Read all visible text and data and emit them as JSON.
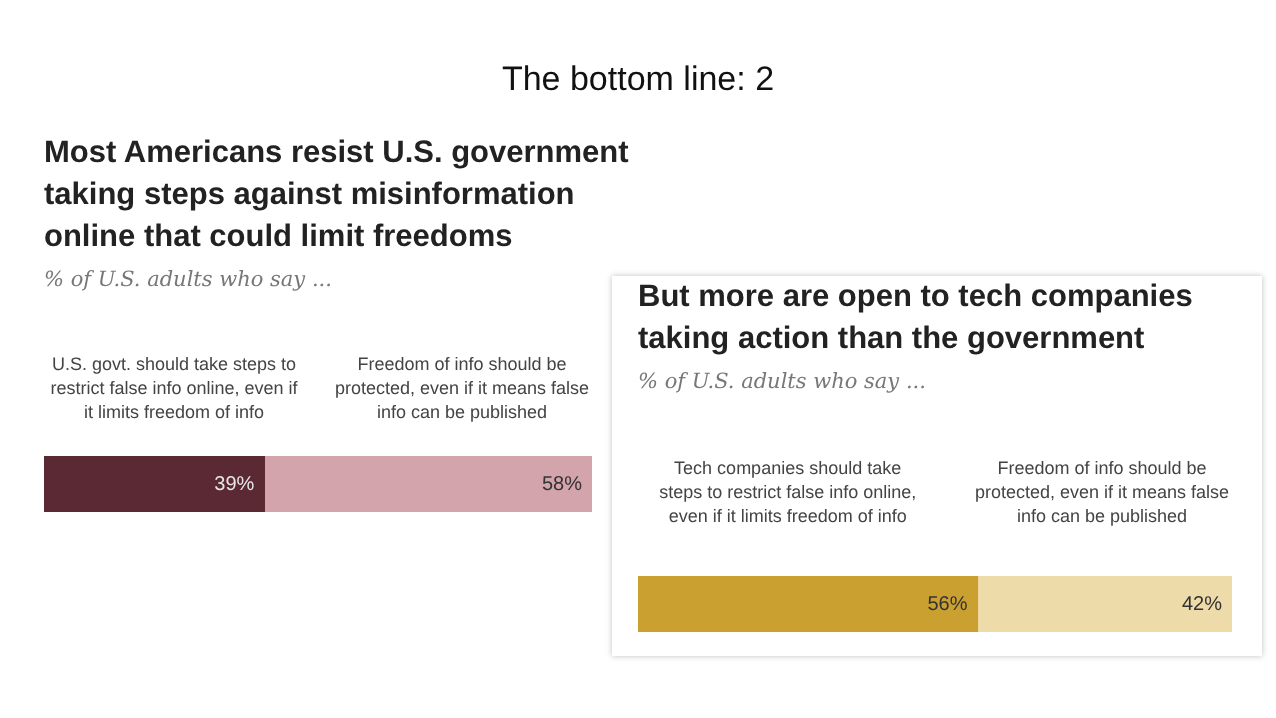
{
  "chart_data": [
    {
      "type": "bar",
      "orientation": "horizontal",
      "stacked": true,
      "title": "Most Americans resist U.S. government taking steps against misinformation online that could limit freedoms",
      "subtitle": "% of U.S. adults who say ...",
      "annotations": [
        "The bottom line: 2"
      ],
      "categories": [
        null
      ],
      "legend": false,
      "series": [
        {
          "name": "U.S. govt. should take steps to restrict false info online, even if it limits freedom of info",
          "color": "#5b2933",
          "values": [
            39
          ],
          "value_labels": [
            "39%"
          ]
        },
        {
          "name": "Freedom of info should be protected, even if it means false info can be published",
          "color": "#d3a4ab",
          "values": [
            58
          ],
          "value_labels": [
            "58%"
          ]
        }
      ]
    },
    {
      "type": "bar",
      "orientation": "horizontal",
      "stacked": true,
      "title": "But more are open to tech companies taking action than the government",
      "subtitle": "% of U.S. adults who say ...",
      "categories": [
        null
      ],
      "legend": false,
      "series": [
        {
          "name": "Tech companies should take steps to restrict false info online, even if it limits freedom of info",
          "color": "#caa131",
          "values": [
            56
          ],
          "value_labels": [
            "56%"
          ]
        },
        {
          "name": "Freedom of info should be protected, even if it means false info can be published",
          "color": "#eddba9",
          "values": [
            42
          ],
          "value_labels": [
            "42%"
          ]
        }
      ]
    }
  ]
}
